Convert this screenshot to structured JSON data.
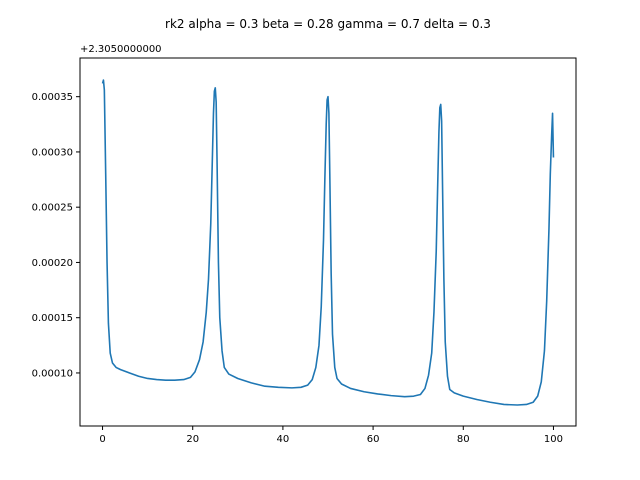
{
  "chart_data": {
    "type": "line",
    "title": "rk2 alpha = 0.3 beta = 0.28 gamma = 0.7 delta = 0.3",
    "xlabel": "",
    "ylabel": "",
    "offset_text": "+2.3050000000",
    "xlim": [
      -5,
      105
    ],
    "ylim": [
      5.2e-05,
      0.000385
    ],
    "xticks": [
      0,
      20,
      40,
      60,
      80,
      100
    ],
    "xtick_labels": [
      "0",
      "20",
      "40",
      "60",
      "80",
      "100"
    ],
    "yticks": [
      0.0001,
      0.00015,
      0.0002,
      0.00025,
      0.0003,
      0.00035
    ],
    "ytick_labels": [
      "0.00010",
      "0.00015",
      "0.00020",
      "0.00025",
      "0.00030",
      "0.00035"
    ],
    "grid": false,
    "series": [
      {
        "color": "#1f77b4",
        "x": [
          0,
          0.2,
          0.4,
          0.7,
          1,
          1.3,
          1.7,
          2.2,
          3,
          4,
          6,
          8,
          10,
          12,
          14,
          16,
          18,
          19.5,
          20.5,
          21.5,
          22.3,
          23,
          23.5,
          24,
          24.3,
          24.6,
          24.8,
          25,
          25.2,
          25.4,
          25.7,
          26,
          26.5,
          27,
          28,
          30,
          33,
          36,
          39,
          42,
          44,
          45.5,
          46.5,
          47.3,
          48,
          48.5,
          49,
          49.3,
          49.6,
          49.8,
          50,
          50.2,
          50.4,
          50.7,
          51,
          51.5,
          52,
          53,
          55,
          58,
          61,
          64,
          67,
          69,
          70.5,
          71.5,
          72.3,
          73,
          73.5,
          74,
          74.3,
          74.6,
          74.8,
          75,
          75.2,
          75.4,
          75.7,
          76,
          76.5,
          77,
          78,
          80,
          83,
          86,
          89,
          92,
          94,
          95.5,
          96.5,
          97.3,
          98,
          98.5,
          99,
          99.3,
          99.6,
          99.8,
          100
        ],
        "y": [
          0.000362,
          0.000365,
          0.000356,
          0.00028,
          0.0002,
          0.000145,
          0.000118,
          0.000109,
          0.000105,
          0.000103,
          0.0001,
          9.7e-05,
          9.5e-05,
          9.4e-05,
          9.35e-05,
          9.35e-05,
          9.4e-05,
          9.6e-05,
          0.000101,
          0.000112,
          0.000128,
          0.000155,
          0.000185,
          0.000235,
          0.000285,
          0.000335,
          0.000355,
          0.000358,
          0.000345,
          0.00029,
          0.0002,
          0.00015,
          0.00012,
          0.000105,
          9.9e-05,
          9.5e-05,
          9.1e-05,
          8.8e-05,
          8.7e-05,
          8.65e-05,
          8.7e-05,
          8.9e-05,
          9.4e-05,
          0.000105,
          0.000125,
          0.00016,
          0.00022,
          0.000275,
          0.000325,
          0.000347,
          0.00035,
          0.000335,
          0.00028,
          0.00019,
          0.000135,
          0.000105,
          9.5e-05,
          9e-05,
          8.6e-05,
          8.3e-05,
          8.1e-05,
          7.95e-05,
          7.85e-05,
          7.9e-05,
          8.05e-05,
          8.6e-05,
          9.8e-05,
          0.000118,
          0.000155,
          0.00021,
          0.000265,
          0.000318,
          0.00034,
          0.000343,
          0.000328,
          0.00027,
          0.000185,
          0.000128,
          9.7e-05,
          8.5e-05,
          8.2e-05,
          7.9e-05,
          7.6e-05,
          7.35e-05,
          7.15e-05,
          7.1e-05,
          7.15e-05,
          7.35e-05,
          7.9e-05,
          9.2e-05,
          0.00012,
          0.000165,
          0.00023,
          0.00028,
          0.000315,
          0.000335,
          0.000295
        ]
      }
    ]
  }
}
